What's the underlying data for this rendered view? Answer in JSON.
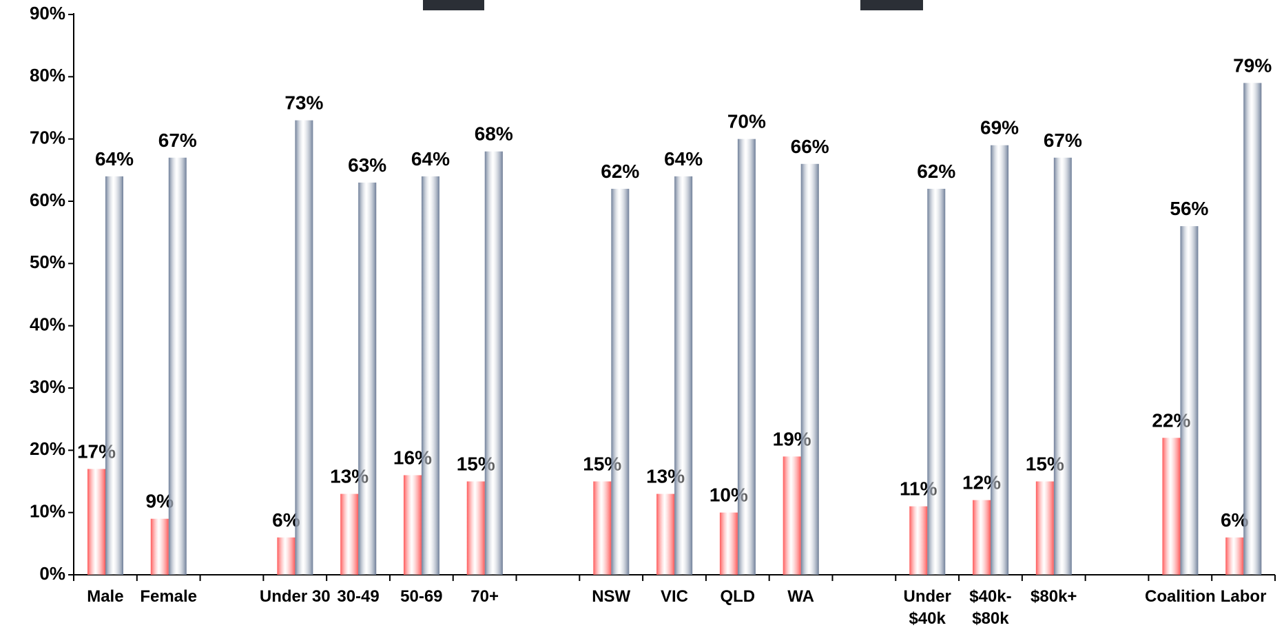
{
  "chart_data": {
    "type": "bar",
    "categories": [
      "Male",
      "Female",
      null,
      "Under 30",
      "30-49",
      "50-69",
      "70+",
      null,
      "NSW",
      "VIC",
      "QLD",
      "WA",
      null,
      "Under\n$40k",
      "$40k-\n$80k",
      "$80k+",
      null,
      "Coalition",
      "Labor"
    ],
    "series": [
      {
        "color": "#ff5a5a",
        "values": [
          17,
          9,
          null,
          6,
          13,
          16,
          15,
          null,
          15,
          13,
          10,
          19,
          null,
          11,
          12,
          15,
          null,
          22,
          6
        ],
        "value_labels": [
          "17%",
          "9%",
          null,
          "6%",
          "13%",
          "16%",
          "15%",
          null,
          "15%",
          "13%",
          "10%",
          "19%",
          null,
          "11%",
          "12%",
          "15%",
          null,
          "22%",
          "6%"
        ]
      },
      {
        "color": "#6f7f99",
        "values": [
          64,
          67,
          null,
          73,
          63,
          64,
          68,
          null,
          62,
          64,
          70,
          66,
          null,
          62,
          69,
          67,
          null,
          56,
          79
        ],
        "value_labels": [
          "64%",
          "67%",
          null,
          "73%",
          "63%",
          "64%",
          "68%",
          null,
          "62%",
          "64%",
          "70%",
          "66%",
          null,
          "62%",
          "69%",
          "67%",
          null,
          "56%",
          "79%"
        ]
      }
    ],
    "ylim": [
      0,
      90
    ],
    "yticks": [
      {
        "value": 0,
        "label": "0%"
      },
      {
        "value": 10,
        "label": "10%"
      },
      {
        "value": 20,
        "label": "20%"
      },
      {
        "value": 30,
        "label": "30%"
      },
      {
        "value": 40,
        "label": "40%"
      },
      {
        "value": 50,
        "label": "50%"
      },
      {
        "value": 60,
        "label": "60%"
      },
      {
        "value": 70,
        "label": "70%"
      },
      {
        "value": 80,
        "label": "80%"
      },
      {
        "value": 90,
        "label": "90%"
      }
    ],
    "grid": false
  }
}
